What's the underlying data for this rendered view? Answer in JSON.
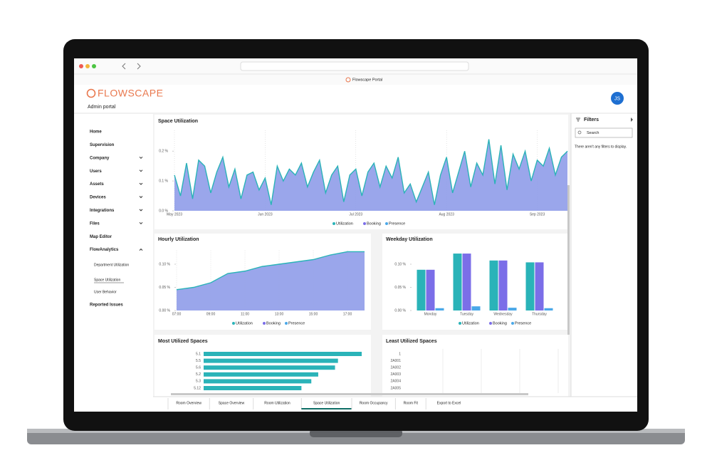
{
  "browser": {
    "tab_title": "Flowscape Portal"
  },
  "header": {
    "logo": "FLOWSCAPE",
    "subtitle": "Admin portal",
    "avatar": "JS"
  },
  "nav": {
    "items": [
      "Home",
      "Supervision",
      "Company",
      "Users",
      "Assets",
      "Devices",
      "Integrations",
      "Files",
      "Map Editor",
      "FlowAnalytics"
    ],
    "sub_items": [
      "Department Utilization",
      "Space Utilization",
      "User Behavior"
    ],
    "last": "Reported Issues"
  },
  "chart_data": [
    {
      "type": "line",
      "title": "Space Utilization",
      "categories": [
        "May 2023",
        null,
        null,
        null,
        null,
        null,
        null,
        null,
        null,
        null,
        null,
        null,
        null,
        null,
        null,
        "Jun 2023",
        null,
        null,
        null,
        null,
        null,
        null,
        null,
        null,
        null,
        null,
        null,
        null,
        null,
        null,
        "Jul 2023",
        null,
        null,
        null,
        null,
        null,
        null,
        null,
        null,
        null,
        null,
        null,
        null,
        null,
        null,
        "Aug 2023",
        null,
        null,
        null,
        null,
        null,
        null,
        null,
        null,
        null,
        null,
        null,
        null,
        null,
        null,
        "Sep 2023",
        null,
        null,
        null,
        null,
        null
      ],
      "series": [
        {
          "name": "Utilization",
          "color": "#2ab3b8",
          "fill": "#8f9ce9",
          "values": [
            0.12,
            0.05,
            0.16,
            0.04,
            0.17,
            0.15,
            0.06,
            0.13,
            0.18,
            0.08,
            0.14,
            0.04,
            0.12,
            0.13,
            0.07,
            0.11,
            0.02,
            0.15,
            0.1,
            0.14,
            0.12,
            0.16,
            0.08,
            0.13,
            0.17,
            0.06,
            0.12,
            0.15,
            0.03,
            0.12,
            0.14,
            0.05,
            0.13,
            0.16,
            0.08,
            0.15,
            0.11,
            0.18,
            0.06,
            0.09,
            0.03,
            0.08,
            0.13,
            0.02,
            0.12,
            0.18,
            0.06,
            0.13,
            0.2,
            0.08,
            0.16,
            0.12,
            0.24,
            0.09,
            0.22,
            0.07,
            0.19,
            0.14,
            0.2,
            0.1,
            0.17,
            0.15,
            0.21,
            0.12,
            0.18,
            0.2
          ]
        }
      ],
      "legend": [
        {
          "name": "Utilization",
          "color": "#2ab3b8"
        },
        {
          "name": "Booking",
          "color": "#7b6ee8"
        },
        {
          "name": "Presence",
          "color": "#4aa8e8"
        }
      ],
      "ylim": [
        0,
        0.27
      ],
      "yticks": [
        {
          "value": 0,
          "label": "0.0 %"
        },
        {
          "value": 0.1,
          "label": "0.1 %"
        },
        {
          "value": 0.2,
          "label": "0.2 %"
        }
      ]
    },
    {
      "type": "line",
      "title": "Hourly Utilization",
      "categories": [
        "07:00",
        null,
        "09:00",
        null,
        "11:00",
        null,
        "13:00",
        null,
        "15:00",
        null,
        "17:00",
        null
      ],
      "series": [
        {
          "name": "Utilization",
          "color": "#2ab3b8",
          "fill": "#8f9ce9",
          "values": [
            0.045,
            0.05,
            0.06,
            0.08,
            0.085,
            0.095,
            0.1,
            0.105,
            0.11,
            0.12,
            0.127,
            0.127
          ]
        }
      ],
      "legend": [
        {
          "name": "Utilization",
          "color": "#2ab3b8"
        },
        {
          "name": "Booking",
          "color": "#7b6ee8"
        },
        {
          "name": "Presence",
          "color": "#4aa8e8"
        }
      ],
      "ylim": [
        0,
        0.13
      ],
      "yticks": [
        {
          "value": 0,
          "label": "0.00 %"
        },
        {
          "value": 0.05,
          "label": "0.05 %"
        },
        {
          "value": 0.1,
          "label": "0.10 %"
        }
      ]
    },
    {
      "type": "bar",
      "title": "Weekday Utilization",
      "categories": [
        "Monday",
        "Tuesday",
        "Wednesday",
        "Thursday"
      ],
      "series": [
        {
          "name": "Utilization",
          "color": "#2ab3b8",
          "values": [
            0.088,
            0.123,
            0.108,
            0.104
          ]
        },
        {
          "name": "Booking",
          "color": "#7b6ee8",
          "values": [
            0.088,
            0.123,
            0.108,
            0.104
          ]
        },
        {
          "name": "Presence",
          "color": "#4aa8e8",
          "values": [
            0.005,
            0.009,
            0.006,
            0.005
          ]
        }
      ],
      "ylim": [
        0,
        0.13
      ],
      "yticks": [
        {
          "value": 0,
          "label": "0.00 %"
        },
        {
          "value": 0.05,
          "label": "0.05 %"
        },
        {
          "value": 0.1,
          "label": "0.10 %"
        }
      ]
    },
    {
      "type": "hbar",
      "title": "Most Utilized Spaces",
      "categories": [
        "5.1",
        "5.5",
        "5.6",
        "5.2",
        "5.3",
        "5.12"
      ],
      "values": [
        0.16,
        0.136,
        0.133,
        0.116,
        0.109,
        0.099
      ],
      "color": "#2ab3b8",
      "xlim": [
        0,
        0.16
      ]
    },
    {
      "type": "list",
      "title": "Least Utilized Spaces",
      "categories": [
        "1",
        "2A001",
        "2A002",
        "2A003",
        "2A004",
        "2A005"
      ]
    }
  ],
  "tabs": {
    "items": [
      "Room Overview",
      "Space Overview",
      "Room Utilization",
      "Space Utilization",
      "Room Occupancy",
      "Room Fit",
      "Export to Excel"
    ],
    "active": 3
  },
  "filters": {
    "title": "Filters",
    "search": "Search",
    "empty": "There aren't any filters to display."
  }
}
